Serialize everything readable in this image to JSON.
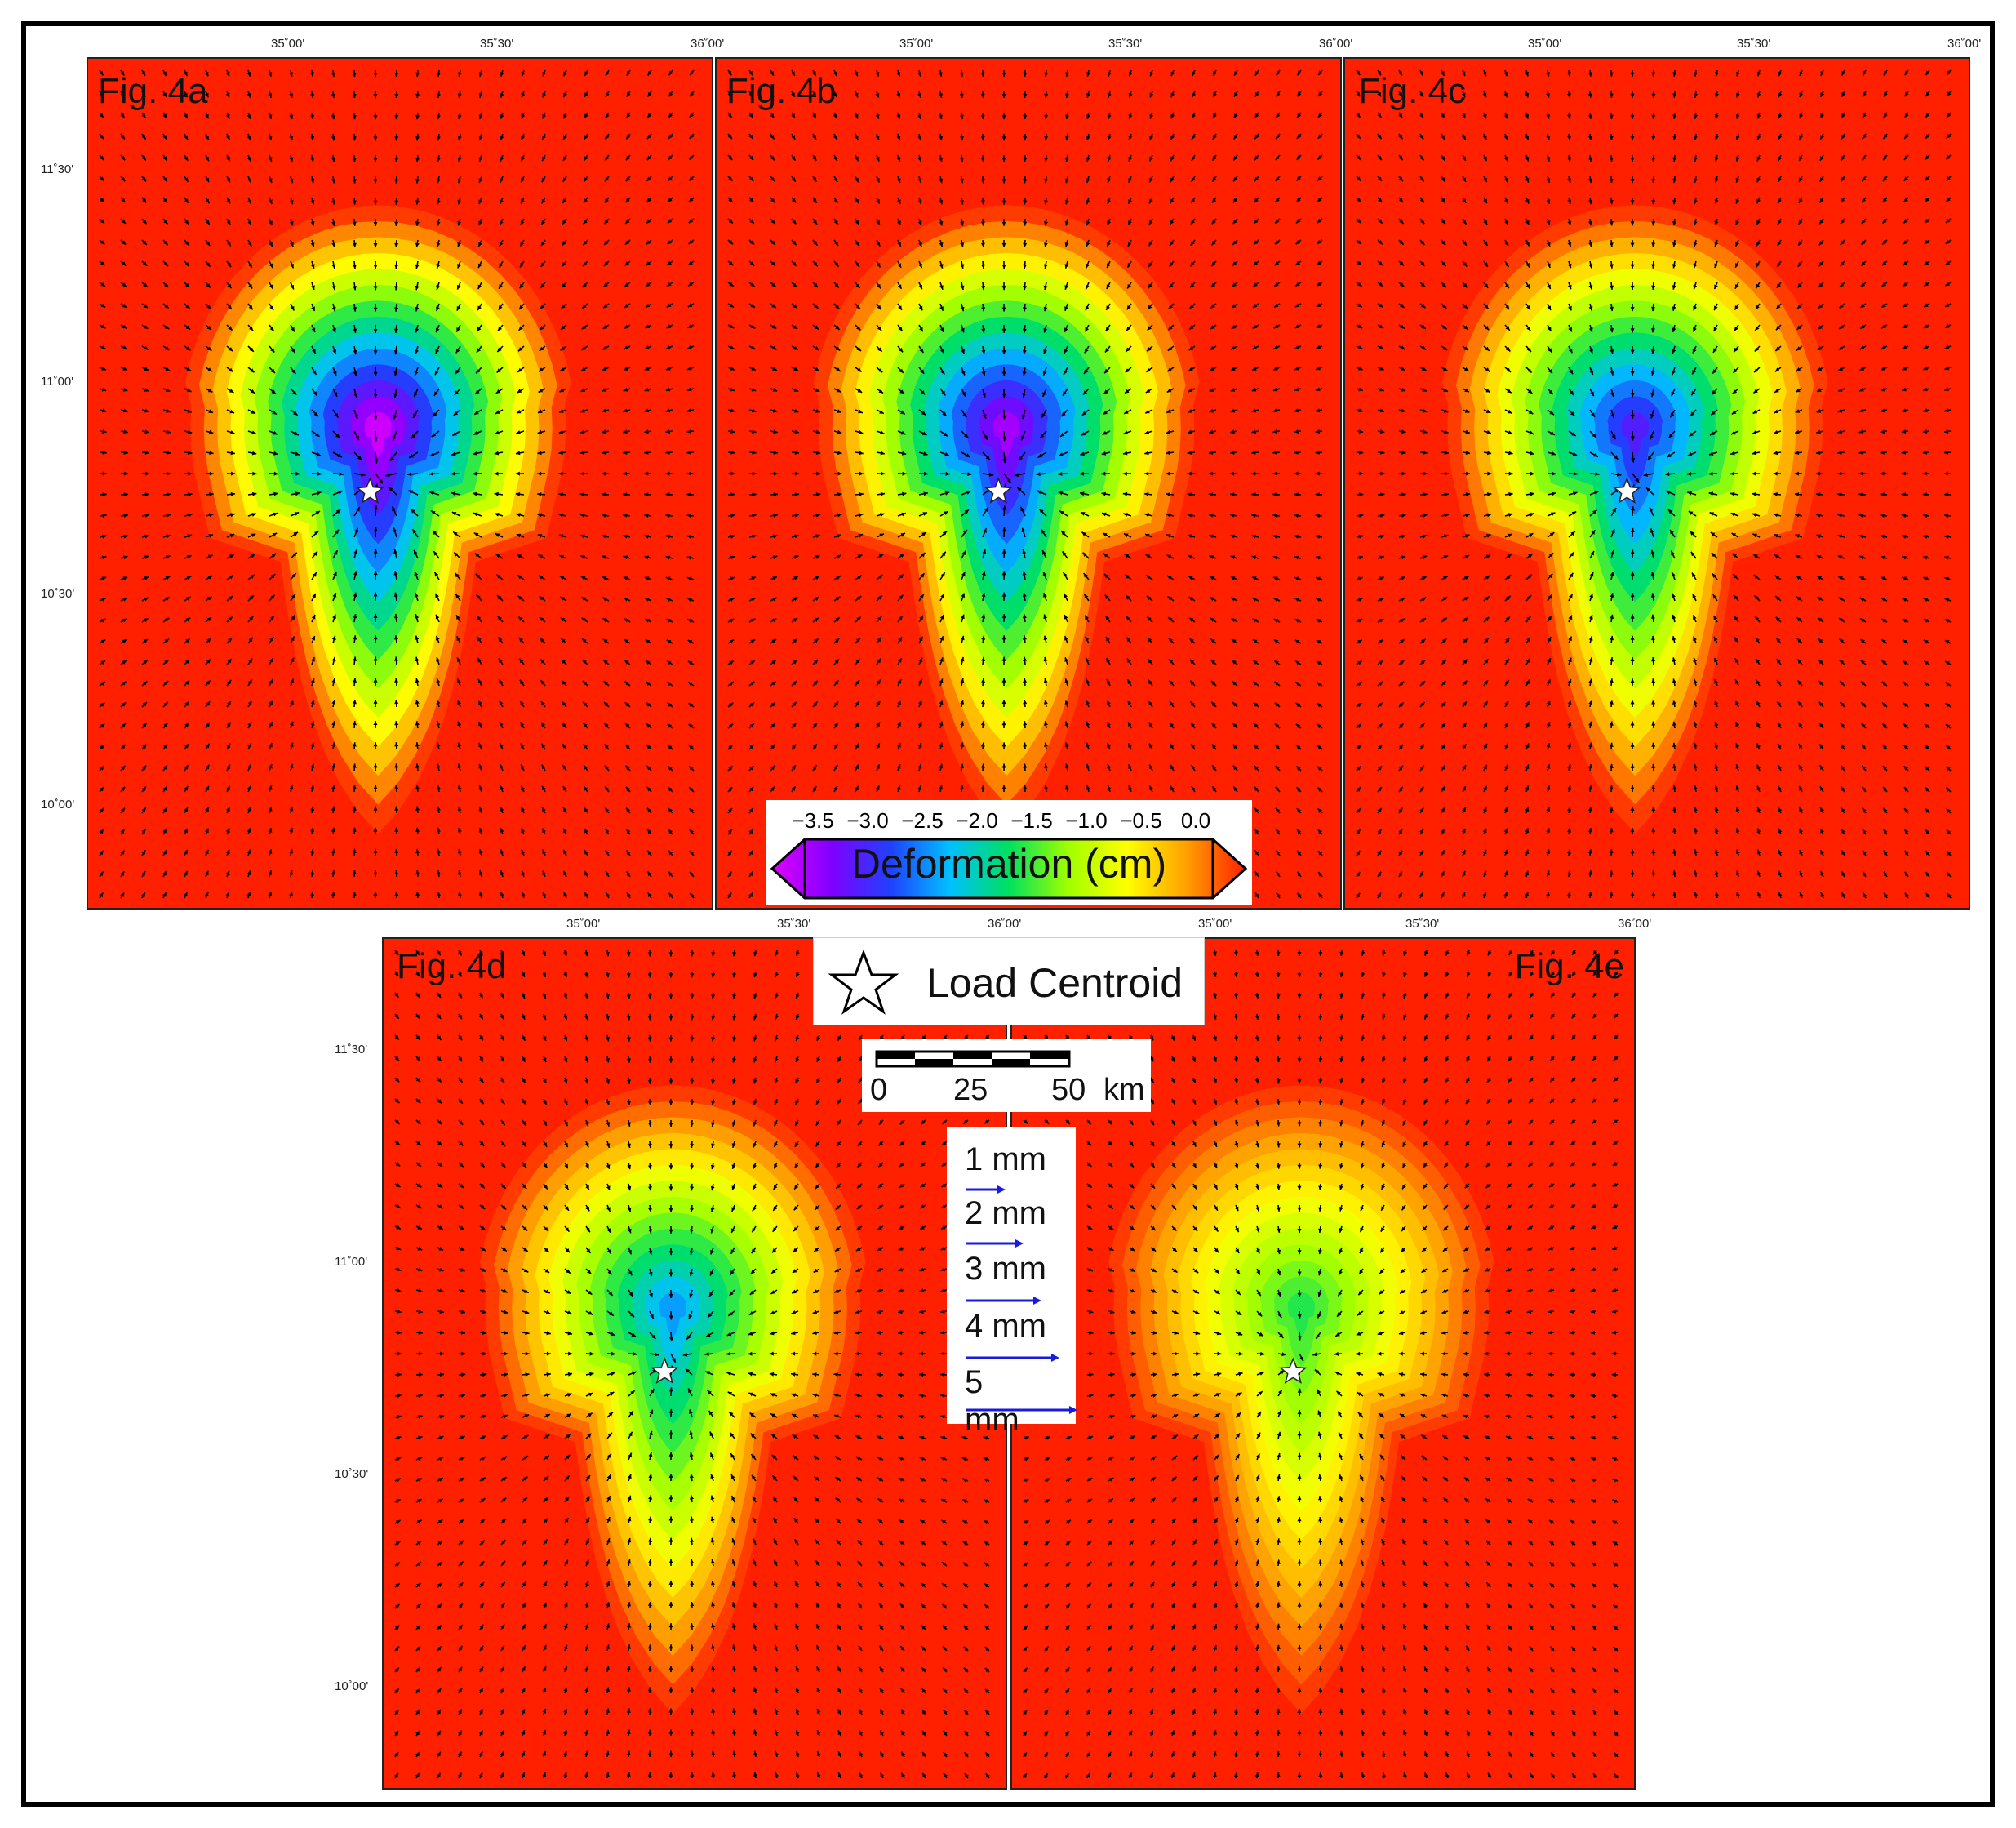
{
  "figure": {
    "panels": [
      {
        "id": "4a",
        "label": "Fig. 4a",
        "max_depth_cm": 3.6
      },
      {
        "id": "4b",
        "label": "Fig. 4b",
        "max_depth_cm": 3.4
      },
      {
        "id": "4c",
        "label": "Fig. 4c",
        "max_depth_cm": 3.0
      },
      {
        "id": "4d",
        "label": "Fig. 4d",
        "max_depth_cm": 2.4
      },
      {
        "id": "4e",
        "label": "Fig. 4e",
        "max_depth_cm": 1.7
      }
    ],
    "longitude_ticks": [
      "35˚00'",
      "35˚30'",
      "36˚00'"
    ],
    "latitude_ticks": [
      "11˚30'",
      "11˚00'",
      "10˚30'",
      "10˚00'"
    ],
    "colorbar": {
      "title": "Deformation (cm)",
      "tick_labels": [
        "−3.5",
        "−3.0",
        "−2.5",
        "−2.0",
        "−1.5",
        "−1.0",
        "−0.5",
        "0.0"
      ],
      "range": [
        -3.7,
        0.1
      ],
      "colors": [
        "#e000ff",
        "#8000ff",
        "#2040ff",
        "#00c0ff",
        "#00e060",
        "#a0ff00",
        "#ffff00",
        "#ffa000",
        "#ff2000"
      ]
    },
    "legend": {
      "symbol": "star-icon",
      "label": "Load Centroid"
    },
    "scalebar": {
      "labels": [
        "0",
        "25",
        "50",
        "km"
      ]
    },
    "vector_legend": {
      "items": [
        {
          "label": "1 mm",
          "length_mm": 1
        },
        {
          "label": "2 mm",
          "length_mm": 2
        },
        {
          "label": "3 mm",
          "length_mm": 3
        },
        {
          "label": "4 mm",
          "length_mm": 4
        },
        {
          "label": "5 mm",
          "length_mm": 5
        }
      ],
      "arrow_color": "#1a1adc"
    }
  }
}
